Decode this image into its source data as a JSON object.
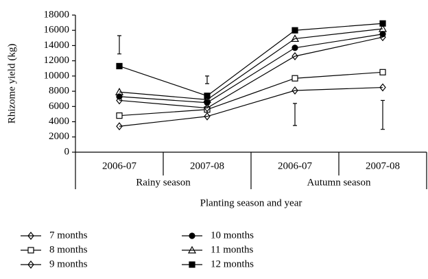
{
  "chart_data": {
    "type": "line",
    "y_label": "Rhizome yield (kg)",
    "x_label": "Planting season and year",
    "categories": [
      "2006-07",
      "2007-08",
      "2006-07",
      "2007-08"
    ],
    "groups": [
      "Rainy season",
      "Autumn season"
    ],
    "ylim": [
      0,
      18000
    ],
    "yticks": [
      0,
      2000,
      4000,
      6000,
      8000,
      10000,
      12000,
      14000,
      16000,
      18000
    ],
    "series": [
      {
        "name": "7 months",
        "color": "#000000",
        "marker": "diamond",
        "filled": true,
        "values": [
          3400,
          4700,
          8100,
          8500
        ]
      },
      {
        "name": "8 months",
        "color": "#000000",
        "marker": "square",
        "filled": false,
        "values": [
          4800,
          5600,
          9700,
          10500
        ]
      },
      {
        "name": "9 months",
        "color": "#000000",
        "marker": "diamond",
        "filled": false,
        "values": [
          6800,
          5800,
          12600,
          15100
        ]
      },
      {
        "name": "10 months",
        "color": "#000000",
        "marker": "circle",
        "filled": true,
        "values": [
          7300,
          6500,
          13700,
          15500
        ]
      },
      {
        "name": "11 months",
        "color": "#000000",
        "marker": "triangle",
        "filled": false,
        "values": [
          7900,
          6900,
          14900,
          16200
        ]
      },
      {
        "name": "12 months",
        "color": "#000000",
        "marker": "square",
        "filled": true,
        "values": [
          11300,
          7400,
          16000,
          16900
        ]
      }
    ],
    "error_bars": [
      [
        12900,
        15300
      ],
      [
        9000,
        10000
      ],
      [
        3500,
        6400
      ],
      [
        3000,
        6800
      ]
    ]
  }
}
